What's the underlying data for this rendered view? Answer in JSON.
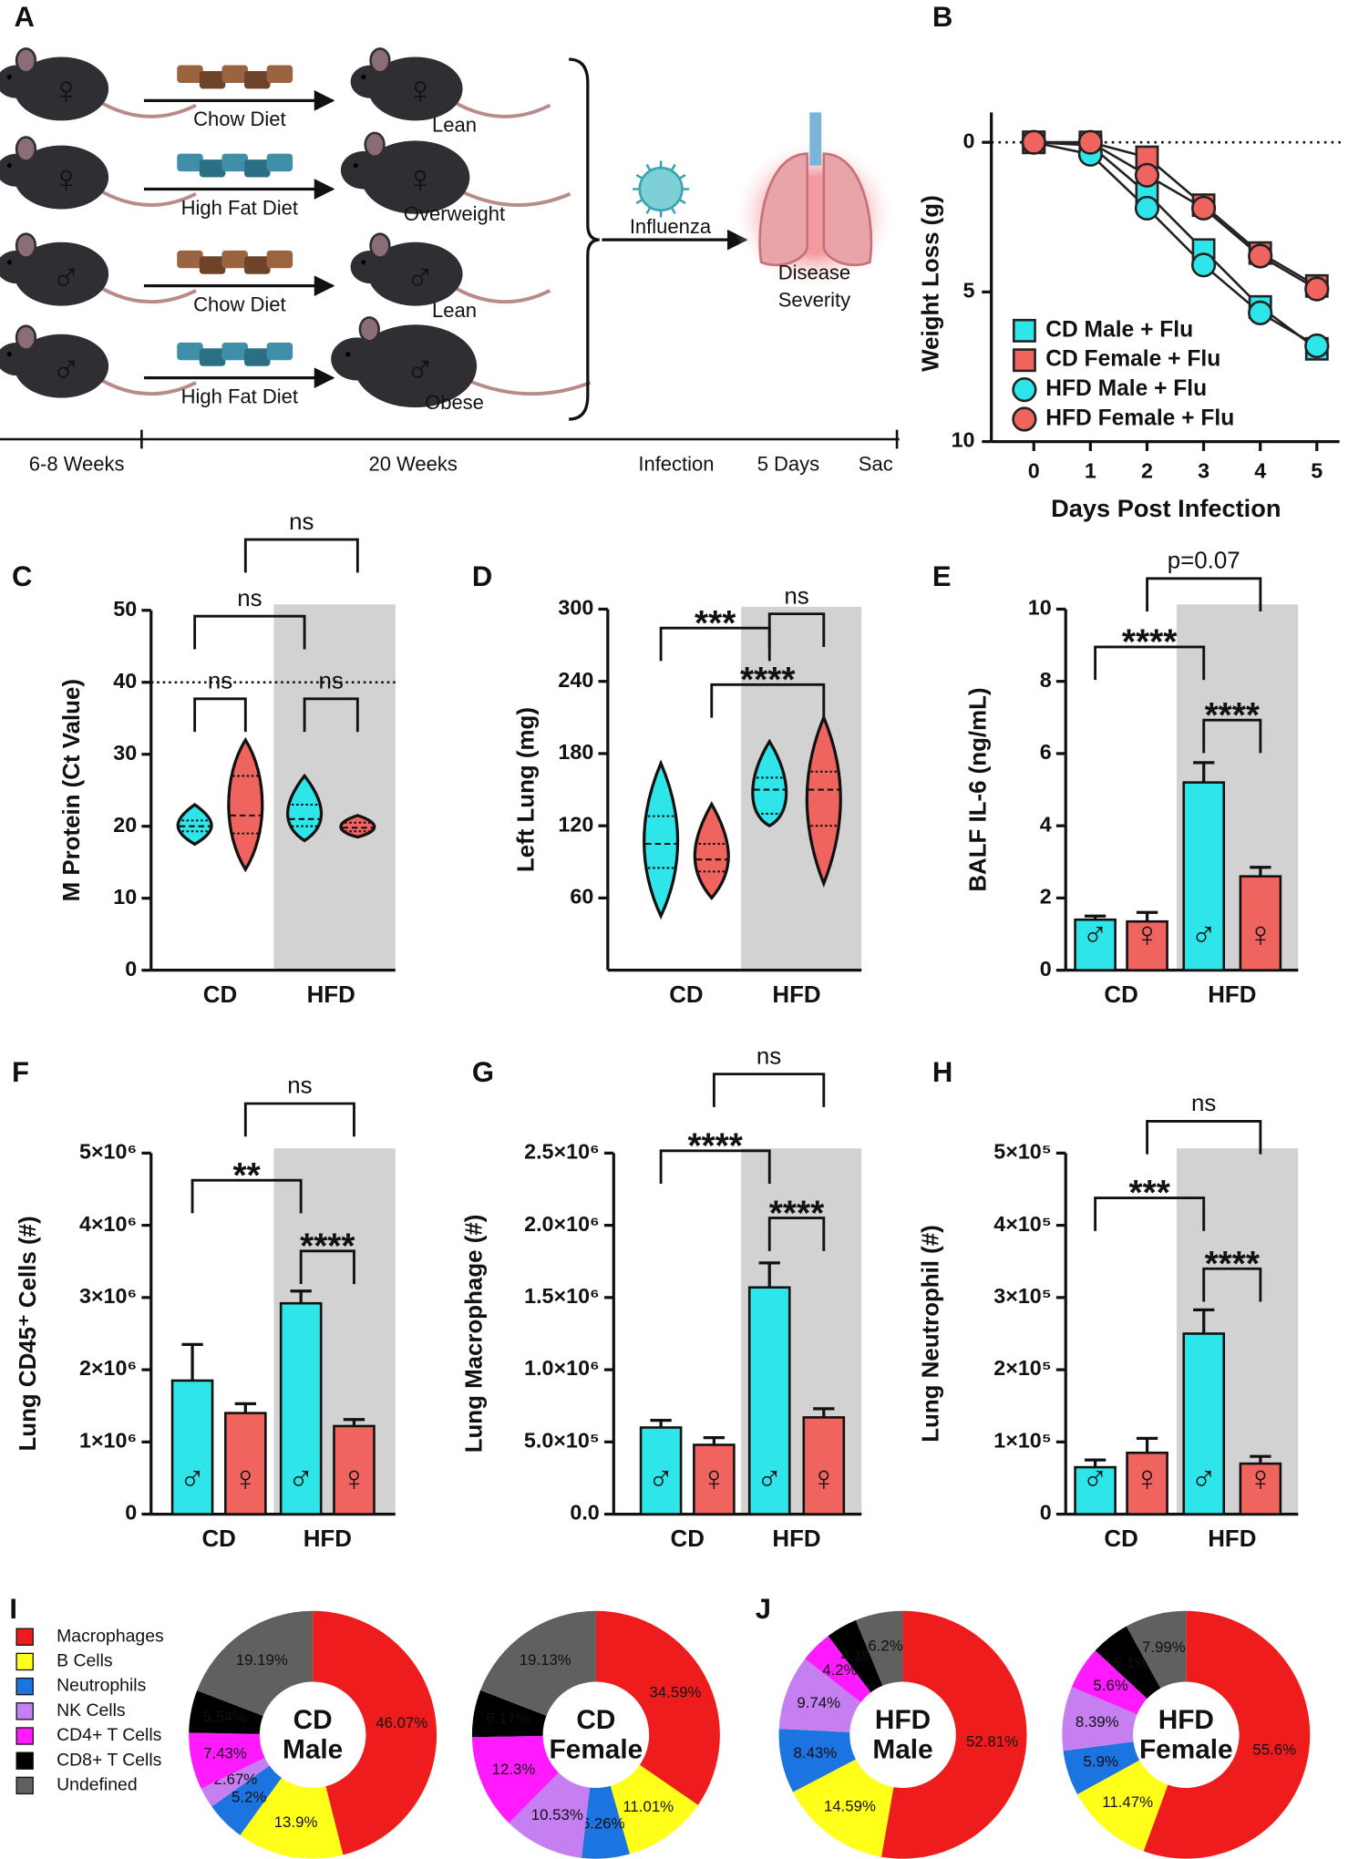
{
  "diagram": {
    "panel": "A",
    "rows": [
      {
        "sex": "♀",
        "diet": "Chow Diet",
        "outcome": "Lean"
      },
      {
        "sex": "♀",
        "diet": "High Fat Diet",
        "outcome": "Overweight"
      },
      {
        "sex": "♂",
        "diet": "Chow Diet",
        "outcome": "Lean"
      },
      {
        "sex": "♂",
        "diet": "High Fat Diet",
        "outcome": "Obese"
      }
    ],
    "infection": "Influenza",
    "outcome_lines": [
      "Disease",
      "Severity"
    ],
    "timeline": [
      "6-8 Weeks",
      "20 Weeks",
      "Infection",
      "5 Days",
      "Sac"
    ]
  },
  "chart_data": [
    {
      "panel": "B",
      "type": "line",
      "y_label": "Weight Loss (g)",
      "x_label": "Days Post Infection",
      "x": [
        0,
        1,
        2,
        3,
        4,
        5
      ],
      "xlim": [
        -0.75,
        5.4
      ],
      "xticks": [
        0,
        1,
        2,
        3,
        4,
        5
      ],
      "ylim": [
        -1,
        10
      ],
      "y_inverted": true,
      "yticks": [
        0,
        5,
        10
      ],
      "reference_line": 0,
      "legend": "lower right",
      "series": [
        {
          "name": "CD Male + Flu",
          "color": "#2ee6ea",
          "marker": "square",
          "values": [
            0,
            0.1,
            1.7,
            3.6,
            5.5,
            6.9
          ]
        },
        {
          "name": "CD Female + Flu",
          "color": "#f0645f",
          "marker": "square",
          "values": [
            0,
            0,
            0.5,
            2.1,
            3.7,
            4.8
          ]
        },
        {
          "name": "HFD Male + Flu",
          "color": "#2ee6ea",
          "marker": "circle",
          "values": [
            0,
            0.4,
            2.2,
            4.1,
            5.7,
            6.8
          ]
        },
        {
          "name": "HFD Female + Flu",
          "color": "#f0645f",
          "marker": "circle",
          "values": [
            0,
            0,
            1.1,
            2.2,
            3.8,
            4.9
          ]
        }
      ]
    },
    {
      "panel": "C",
      "type": "violin",
      "y_label": "M Protein (Ct Value)",
      "categories": [
        "CD",
        "HFD"
      ],
      "ylim": [
        0,
        50
      ],
      "yticks": [
        0,
        10,
        20,
        30,
        40,
        50
      ],
      "reference_line": 40,
      "series": [
        {
          "color": "#2ee6ea",
          "violins": [
            {
              "min": 17.5,
              "q1": 19.3,
              "median": 20,
              "q3": 20.8,
              "max": 23
            },
            {
              "min": 18,
              "q1": 20,
              "median": 21,
              "q3": 23,
              "max": 27
            }
          ]
        },
        {
          "color": "#f0645f",
          "violins": [
            {
              "min": 14,
              "q1": 19,
              "median": 21.5,
              "q3": 27,
              "max": 32
            },
            {
              "min": 18.5,
              "q1": 19.3,
              "median": 19.8,
              "q3": 20.5,
              "max": 21.5
            }
          ]
        }
      ],
      "brackets": [
        {
          "from": 0,
          "to": 1,
          "label": "ns"
        },
        {
          "from": 2,
          "to": 3,
          "label": "ns"
        },
        {
          "from": 0,
          "to": 2,
          "label": "ns"
        },
        {
          "from": 1,
          "to": 3,
          "label": "ns"
        }
      ]
    },
    {
      "panel": "D",
      "type": "violin",
      "y_label": "Left Lung (mg)",
      "categories": [
        "CD",
        "HFD"
      ],
      "ylim": [
        0,
        300
      ],
      "yticks": [
        60,
        120,
        180,
        240,
        300
      ],
      "series": [
        {
          "color": "#2ee6ea",
          "violins": [
            {
              "min": 45,
              "q1": 85,
              "median": 105,
              "q3": 128,
              "max": 172
            },
            {
              "min": 120,
              "q1": 130,
              "median": 150,
              "q3": 160,
              "max": 190
            }
          ]
        },
        {
          "color": "#f0645f",
          "violins": [
            {
              "min": 60,
              "q1": 82,
              "median": 92,
              "q3": 105,
              "max": 138
            },
            {
              "min": 72,
              "q1": 120,
              "median": 150,
              "q3": 165,
              "max": 210
            }
          ]
        }
      ],
      "brackets": [
        {
          "from": 0,
          "to": 2,
          "label": "***"
        },
        {
          "from": 2,
          "to": 3,
          "label": "ns"
        },
        {
          "from": 1,
          "to": 3,
          "label": "****"
        }
      ]
    },
    {
      "panel": "E",
      "type": "bar",
      "y_label": "BALF IL-6 (ng/mL)",
      "categories": [
        "CD",
        "HFD"
      ],
      "ylim": [
        0,
        10
      ],
      "yticks": [
        0,
        2,
        4,
        6,
        8,
        10
      ],
      "series": [
        {
          "name": "♂",
          "color": "#2ee6ea",
          "values": [
            1.4,
            5.2
          ],
          "errors": [
            0.1,
            0.55
          ]
        },
        {
          "name": "♀",
          "color": "#f0645f",
          "values": [
            1.35,
            2.6
          ],
          "errors": [
            0.25,
            0.25
          ]
        }
      ],
      "brackets": [
        {
          "from": 0,
          "to": 2,
          "label": "****"
        },
        {
          "from": 2,
          "to": 3,
          "label": "****"
        },
        {
          "from": 1,
          "to": 3,
          "label": "p=0.07"
        }
      ]
    },
    {
      "panel": "F",
      "type": "bar",
      "y_label": "Lung CD45⁺ Cells (#)",
      "categories": [
        "CD",
        "HFD"
      ],
      "ylim": [
        0,
        5000000
      ],
      "yticks": [
        0,
        {
          "value": 1000000,
          "label": "1×10⁶"
        },
        {
          "value": 2000000,
          "label": "2×10⁶"
        },
        {
          "value": 3000000,
          "label": "3×10⁶"
        },
        {
          "value": 4000000,
          "label": "4×10⁶"
        },
        {
          "value": 5000000,
          "label": "5×10⁶"
        }
      ],
      "series": [
        {
          "name": "♂",
          "color": "#2ee6ea",
          "values": [
            1850000,
            2920000
          ],
          "errors": [
            500000,
            170000
          ]
        },
        {
          "name": "♀",
          "color": "#f0645f",
          "values": [
            1400000,
            1220000
          ],
          "errors": [
            130000,
            90000
          ]
        }
      ],
      "brackets": [
        {
          "from": 0,
          "to": 2,
          "label": "**"
        },
        {
          "from": 2,
          "to": 3,
          "label": "****"
        },
        {
          "from": 1,
          "to": 3,
          "label": "ns"
        }
      ]
    },
    {
      "panel": "G",
      "type": "bar",
      "y_label": "Lung Macrophage (#)",
      "categories": [
        "CD",
        "HFD"
      ],
      "ylim": [
        0,
        2500000
      ],
      "yticks": [
        {
          "value": 0,
          "label": "0.0"
        },
        {
          "value": 500000,
          "label": "5.0×10⁵"
        },
        {
          "value": 1000000,
          "label": "1.0×10⁶"
        },
        {
          "value": 1500000,
          "label": "1.5×10⁶"
        },
        {
          "value": 2000000,
          "label": "2.0×10⁶"
        },
        {
          "value": 2500000,
          "label": "2.5×10⁶"
        }
      ],
      "series": [
        {
          "name": "♂",
          "color": "#2ee6ea",
          "values": [
            600000,
            1570000
          ],
          "errors": [
            50000,
            170000
          ]
        },
        {
          "name": "♀",
          "color": "#f0645f",
          "values": [
            480000,
            670000
          ],
          "errors": [
            50000,
            60000
          ]
        }
      ],
      "brackets": [
        {
          "from": 0,
          "to": 2,
          "label": "****"
        },
        {
          "from": 2,
          "to": 3,
          "label": "****"
        },
        {
          "from": 1,
          "to": 3,
          "label": "ns"
        }
      ]
    },
    {
      "panel": "H",
      "type": "bar",
      "y_label": "Lung Neutrophil (#)",
      "categories": [
        "CD",
        "HFD"
      ],
      "ylim": [
        0,
        500000
      ],
      "yticks": [
        0,
        {
          "value": 100000,
          "label": "1×10⁵"
        },
        {
          "value": 200000,
          "label": "2×10⁵"
        },
        {
          "value": 300000,
          "label": "3×10⁵"
        },
        {
          "value": 400000,
          "label": "4×10⁵"
        },
        {
          "value": 500000,
          "label": "5×10⁵"
        }
      ],
      "series": [
        {
          "name": "♂",
          "color": "#2ee6ea",
          "values": [
            65000,
            250000
          ],
          "errors": [
            10000,
            33000
          ]
        },
        {
          "name": "♀",
          "color": "#f0645f",
          "values": [
            85000,
            70000
          ],
          "errors": [
            20000,
            10000
          ]
        }
      ],
      "brackets": [
        {
          "from": 0,
          "to": 2,
          "label": "***"
        },
        {
          "from": 2,
          "to": 3,
          "label": "****"
        },
        {
          "from": 1,
          "to": 3,
          "label": "ns"
        }
      ]
    },
    {
      "panel": "I",
      "type": "donut",
      "legend": "left",
      "categories": [
        "Macrophages",
        "B Cells",
        "Neutrophils",
        "NK Cells",
        "CD4+ T Cells",
        "CD8+ T Cells",
        "Undefined"
      ],
      "colors": [
        "#ee1c1c",
        "#ffff1a",
        "#1c74e0",
        "#c57ff0",
        "#ff1aff",
        "#000000",
        "#606060"
      ],
      "series": [
        {
          "name": "CD Male",
          "values": [
            46.07,
            13.9,
            5.2,
            2.67,
            7.43,
            5.54,
            19.19
          ],
          "value_labels": [
            "46.07%",
            "13.9%",
            "5.2%",
            "2.67%",
            "7.43%",
            "5.54%",
            "19.19%"
          ]
        },
        {
          "name": "CD Female",
          "values": [
            34.59,
            11.01,
            6.26,
            10.53,
            12.3,
            6.17,
            19.13
          ],
          "value_labels": [
            "34.59%",
            "11.01%",
            "6.26%",
            "10.53%",
            "12.3%",
            "6.17%",
            "19.13%"
          ]
        }
      ]
    },
    {
      "panel": "J",
      "type": "donut",
      "colors": [
        "#ee1c1c",
        "#ffff1a",
        "#1c74e0",
        "#c57ff0",
        "#ff1aff",
        "#000000",
        "#606060"
      ],
      "series": [
        {
          "name": "HFD Male",
          "values": [
            52.81,
            14.59,
            8.43,
            9.74,
            4.2,
            4.1,
            6.2
          ],
          "value_labels": [
            "52.81%",
            "14.59%",
            "8.43%",
            "9.74%",
            "4.2%",
            "4.1%",
            "6.2%"
          ]
        },
        {
          "name": "HFD Female",
          "values": [
            55.6,
            11.47,
            5.9,
            8.39,
            5.6,
            5.1,
            7.99
          ],
          "value_labels": [
            "55.6%",
            "11.47%",
            "5.9%",
            "8.39%",
            "5.6%",
            "5.1%",
            "7.99%"
          ]
        }
      ]
    }
  ]
}
